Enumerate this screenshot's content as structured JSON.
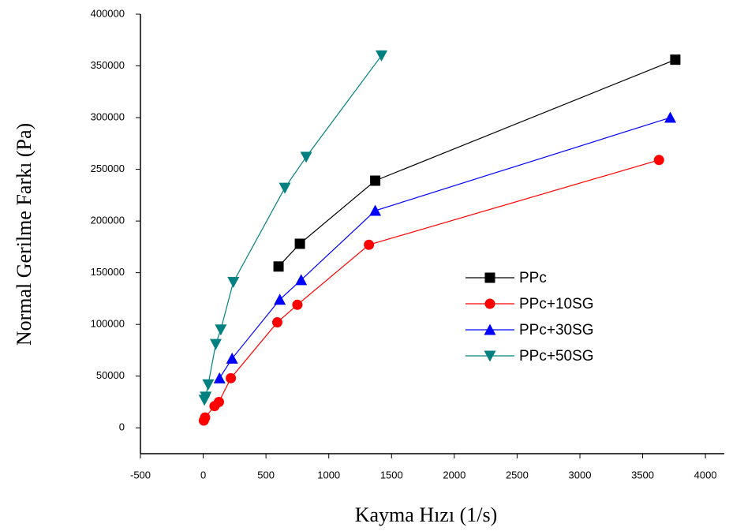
{
  "chart_data": {
    "type": "line",
    "x_label": "Kayma Hızı (1/s)",
    "y_label": "Normal Gerilme Farkı (Pa)",
    "xlim": [
      -500,
      4150
    ],
    "ylim": [
      -25000,
      400000
    ],
    "xticks": [
      -500,
      0,
      500,
      1000,
      1500,
      2000,
      2500,
      3000,
      3500,
      4000
    ],
    "yticks": [
      0,
      50000,
      100000,
      150000,
      200000,
      250000,
      300000,
      350000,
      400000
    ],
    "series": [
      {
        "name": "PPc",
        "color": "#000000",
        "marker": "square",
        "x": [
          600,
          770,
          1370,
          3760
        ],
        "values": [
          156000,
          178000,
          239000,
          356000
        ]
      },
      {
        "name": "PPc+10SG",
        "color": "#ff0000",
        "marker": "circle",
        "x": [
          5,
          15,
          90,
          125,
          220,
          590,
          750,
          1320,
          3630
        ],
        "values": [
          7000,
          10000,
          21000,
          25000,
          48000,
          102000,
          119000,
          177000,
          259000
        ]
      },
      {
        "name": "PPc+30SG",
        "color": "#0000ff",
        "marker": "triangle-up",
        "x": [
          130,
          230,
          610,
          780,
          1370,
          3720
        ],
        "values": [
          48000,
          67000,
          124000,
          143000,
          210000,
          300000
        ]
      },
      {
        "name": "PPc+50SG",
        "color": "#008080",
        "marker": "triangle-down",
        "x": [
          10,
          20,
          40,
          100,
          140,
          240,
          650,
          820,
          1420
        ],
        "values": [
          27000,
          30000,
          42000,
          81000,
          95000,
          141000,
          232000,
          262000,
          360000
        ]
      }
    ]
  }
}
